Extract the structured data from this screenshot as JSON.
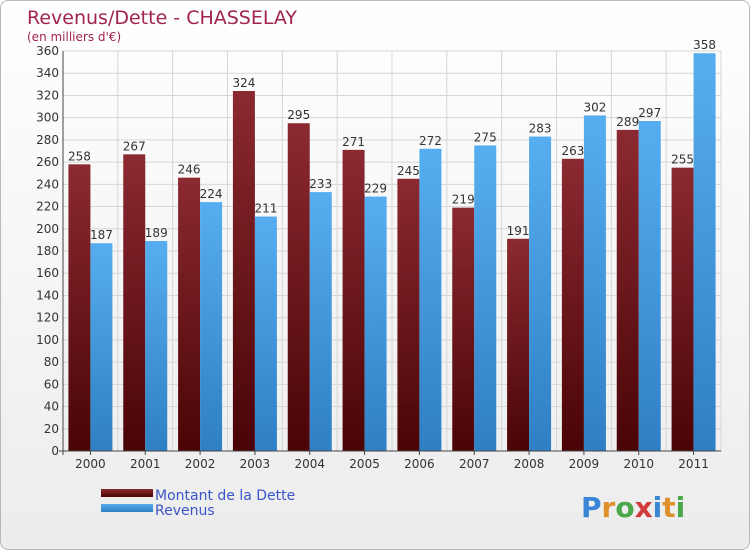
{
  "chart_data": {
    "type": "bar",
    "title": "Revenus/Dette - CHASSELAY",
    "subtitle": "(en milliers d'€)",
    "categories": [
      "2000",
      "2001",
      "2002",
      "2003",
      "2004",
      "2005",
      "2006",
      "2007",
      "2008",
      "2009",
      "2010",
      "2011"
    ],
    "series": [
      {
        "name": "Montant de la Dette",
        "color": "#6b0d12",
        "values": [
          258,
          267,
          246,
          324,
          295,
          271,
          245,
          219,
          191,
          263,
          289,
          255
        ]
      },
      {
        "name": "Revenus",
        "color": "#4a9de0",
        "values": [
          187,
          189,
          224,
          211,
          233,
          229,
          272,
          275,
          283,
          302,
          297,
          358
        ]
      }
    ],
    "ylim": [
      0,
      360
    ],
    "ytick_step": 20,
    "grid": true,
    "legend_position": "bottom-left"
  },
  "brand": {
    "logo": "Proxiti"
  }
}
